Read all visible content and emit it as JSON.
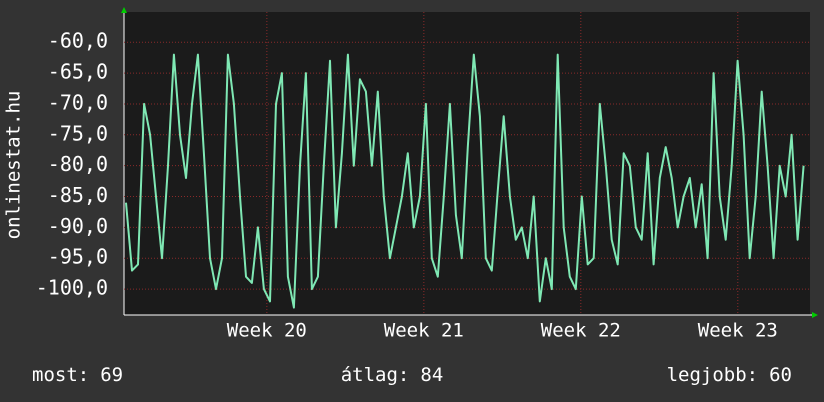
{
  "chart_data": {
    "type": "line",
    "ylabel": "onlinestat.hu",
    "color": "#7fe8b4",
    "grid": true,
    "x": [
      19.103,
      19.141,
      19.179,
      19.218,
      19.256,
      19.294,
      19.332,
      19.37,
      19.408,
      19.447,
      19.485,
      19.523,
      19.561,
      19.599,
      19.638,
      19.676,
      19.714,
      19.752,
      19.79,
      19.829,
      19.867,
      19.905,
      19.943,
      19.981,
      20.02,
      20.058,
      20.096,
      20.134,
      20.172,
      20.211,
      20.249,
      20.287,
      20.325,
      20.363,
      20.402,
      20.44,
      20.478,
      20.516,
      20.554,
      20.593,
      20.631,
      20.669,
      20.707,
      20.745,
      20.784,
      20.822,
      20.86,
      20.898,
      20.936,
      20.975,
      21.013,
      21.051,
      21.089,
      21.127,
      21.166,
      21.204,
      21.242,
      21.28,
      21.318,
      21.357,
      21.395,
      21.433,
      21.471,
      21.509,
      21.548,
      21.586,
      21.624,
      21.662,
      21.7,
      21.739,
      21.777,
      21.815,
      21.853,
      21.891,
      21.93,
      21.968,
      22.006,
      22.044,
      22.082,
      22.121,
      22.159,
      22.197,
      22.235,
      22.273,
      22.312,
      22.35,
      22.388,
      22.426,
      22.464,
      22.503,
      22.541,
      22.579,
      22.617,
      22.655,
      22.694,
      22.732,
      22.77,
      22.808,
      22.846,
      22.885,
      22.923,
      22.961,
      22.999,
      23.037,
      23.076,
      23.114,
      23.152,
      23.19,
      23.228,
      23.267,
      23.305,
      23.343,
      23.381,
      23.419
    ],
    "values": [
      -86,
      -97,
      -96,
      -70,
      -75,
      -85,
      -95,
      -80,
      -62,
      -75,
      -82,
      -70,
      -62,
      -78,
      -95,
      -100,
      -95,
      -62,
      -70,
      -85,
      -98,
      -99,
      -90,
      -100,
      -102,
      -70,
      -65,
      -98,
      -103,
      -80,
      -65,
      -100,
      -98,
      -80,
      -63,
      -90,
      -78,
      -62,
      -80,
      -66,
      -68,
      -80,
      -68,
      -85,
      -95,
      -90,
      -85,
      -78,
      -90,
      -85,
      -70,
      -95,
      -98,
      -85,
      -70,
      -88,
      -95,
      -77,
      -62,
      -72,
      -95,
      -97,
      -84,
      -72,
      -85,
      -92,
      -90,
      -95,
      -85,
      -102,
      -95,
      -100,
      -62,
      -90,
      -98,
      -100,
      -85,
      -96,
      -95,
      -70,
      -80,
      -92,
      -96,
      -78,
      -80,
      -90,
      -92,
      -78,
      -96,
      -82,
      -77,
      -82,
      -90,
      -85,
      -82,
      -90,
      -83,
      -95,
      -65,
      -85,
      -92,
      -80,
      -63,
      -75,
      -95,
      -85,
      -68,
      -80,
      -95,
      -80,
      -85,
      -75,
      -92,
      -80
    ],
    "xlim": [
      19.09,
      23.46
    ],
    "xticks": [
      {
        "value": 20,
        "label": "Week 20"
      },
      {
        "value": 21,
        "label": "Week 21"
      },
      {
        "value": 22,
        "label": "Week 22"
      },
      {
        "value": 23,
        "label": "Week 23"
      }
    ],
    "ylim": [
      -104.2,
      -55.1
    ],
    "yticks": [
      {
        "value": -60,
        "label": "-60,0"
      },
      {
        "value": -65,
        "label": "-65,0"
      },
      {
        "value": -70,
        "label": "-70,0"
      },
      {
        "value": -75,
        "label": "-75,0"
      },
      {
        "value": -80,
        "label": "-80,0"
      },
      {
        "value": -85,
        "label": "-85,0"
      },
      {
        "value": -90,
        "label": "-90,0"
      },
      {
        "value": -95,
        "label": "-95,0"
      },
      {
        "value": -100,
        "label": "-100,0"
      }
    ],
    "stats": [
      {
        "label": "most:",
        "value": 69
      },
      {
        "label": "átlag:",
        "value": 84
      },
      {
        "label": "legjobb:",
        "value": 60
      }
    ]
  }
}
